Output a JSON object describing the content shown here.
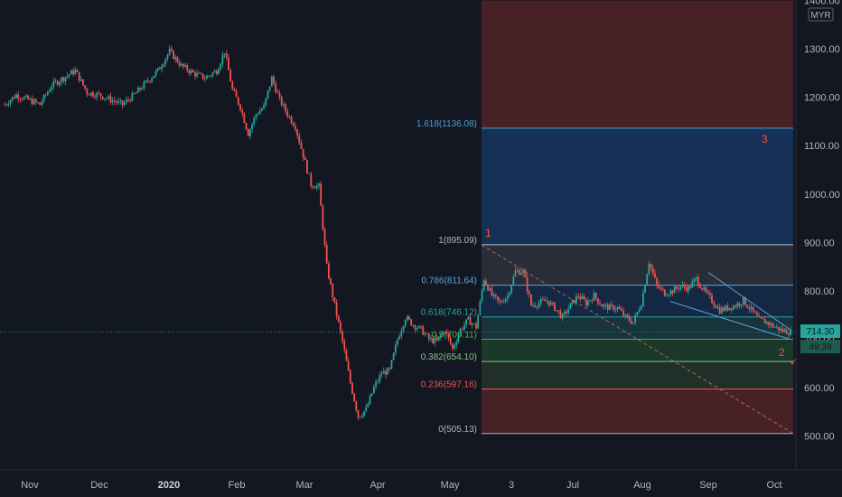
{
  "currency": "MYR",
  "price_badge": "714.30",
  "countdown_badge": "49:39",
  "colors": {
    "background": "#131722",
    "up": "#26a69a",
    "down": "#ef5350",
    "axis_text": "#b2b5be",
    "price_line": "#26a69a",
    "zone_red": "#4a2227",
    "zone_blue": "#15345a",
    "zone_gray": "#2a2e39",
    "zone_green": "#1b3a2a",
    "trendline": "#5ea3d8",
    "dashed": "#b46060"
  },
  "chart_data": {
    "type": "candlestick",
    "title": "",
    "xlabel": "",
    "ylabel": "",
    "ylim": [
      440,
      1400
    ],
    "y_ticks": [
      {
        "value": 500,
        "label": "500.00"
      },
      {
        "value": 600,
        "label": "600.00"
      },
      {
        "value": 700,
        "label": "700.00"
      },
      {
        "value": 800,
        "label": "800.00"
      },
      {
        "value": 900,
        "label": "900.00"
      },
      {
        "value": 1000,
        "label": "1000.00"
      },
      {
        "value": 1100,
        "label": "1100.00"
      },
      {
        "value": 1200,
        "label": "1200.00"
      },
      {
        "value": 1300,
        "label": "1300.00"
      },
      {
        "value": 1400,
        "label": "1400.00"
      }
    ],
    "x_ticks": [
      {
        "label": "Nov",
        "bold": false
      },
      {
        "label": "Dec",
        "bold": false
      },
      {
        "label": "2020",
        "bold": true
      },
      {
        "label": "Feb",
        "bold": false
      },
      {
        "label": "Mar",
        "bold": false
      },
      {
        "label": "Apr",
        "bold": false
      },
      {
        "label": "May",
        "bold": false
      },
      {
        "label": "3",
        "bold": false
      },
      {
        "label": "Jul",
        "bold": false
      },
      {
        "label": "Aug",
        "bold": false
      },
      {
        "label": "Sep",
        "bold": false
      },
      {
        "label": "Oct",
        "bold": false
      }
    ],
    "price_path": [
      {
        "t": 0,
        "v": 1185
      },
      {
        "t": 3,
        "v": 1205
      },
      {
        "t": 6,
        "v": 1195
      },
      {
        "t": 9,
        "v": 1185
      },
      {
        "t": 12,
        "v": 1225
      },
      {
        "t": 15,
        "v": 1240
      },
      {
        "t": 18,
        "v": 1255
      },
      {
        "t": 21,
        "v": 1210
      },
      {
        "t": 24,
        "v": 1205
      },
      {
        "t": 27,
        "v": 1195
      },
      {
        "t": 30,
        "v": 1185
      },
      {
        "t": 33,
        "v": 1205
      },
      {
        "t": 36,
        "v": 1230
      },
      {
        "t": 39,
        "v": 1255
      },
      {
        "t": 42,
        "v": 1295
      },
      {
        "t": 45,
        "v": 1265
      },
      {
        "t": 48,
        "v": 1250
      },
      {
        "t": 51,
        "v": 1240
      },
      {
        "t": 54,
        "v": 1255
      },
      {
        "t": 56,
        "v": 1295
      },
      {
        "t": 58,
        "v": 1215
      },
      {
        "t": 60,
        "v": 1180
      },
      {
        "t": 62,
        "v": 1125
      },
      {
        "t": 64,
        "v": 1165
      },
      {
        "t": 66,
        "v": 1180
      },
      {
        "t": 68,
        "v": 1240
      },
      {
        "t": 70,
        "v": 1195
      },
      {
        "t": 72,
        "v": 1165
      },
      {
        "t": 74,
        "v": 1140
      },
      {
        "t": 76,
        "v": 1080
      },
      {
        "t": 78,
        "v": 1020
      },
      {
        "t": 80,
        "v": 1015
      },
      {
        "t": 82,
        "v": 850
      },
      {
        "t": 84,
        "v": 770
      },
      {
        "t": 86,
        "v": 695
      },
      {
        "t": 88,
        "v": 610
      },
      {
        "t": 90,
        "v": 540
      },
      {
        "t": 92,
        "v": 555
      },
      {
        "t": 94,
        "v": 600
      },
      {
        "t": 96,
        "v": 630
      },
      {
        "t": 98,
        "v": 635
      },
      {
        "t": 100,
        "v": 700
      },
      {
        "t": 102,
        "v": 745
      },
      {
        "t": 104,
        "v": 730
      },
      {
        "t": 106,
        "v": 720
      },
      {
        "t": 108,
        "v": 700
      },
      {
        "t": 110,
        "v": 695
      },
      {
        "t": 112,
        "v": 720
      },
      {
        "t": 114,
        "v": 680
      },
      {
        "t": 116,
        "v": 720
      },
      {
        "t": 118,
        "v": 740
      },
      {
        "t": 120,
        "v": 725
      },
      {
        "t": 122,
        "v": 825
      },
      {
        "t": 124,
        "v": 790
      },
      {
        "t": 126,
        "v": 775
      },
      {
        "t": 128,
        "v": 790
      },
      {
        "t": 130,
        "v": 840
      },
      {
        "t": 132,
        "v": 840
      },
      {
        "t": 134,
        "v": 770
      },
      {
        "t": 136,
        "v": 775
      },
      {
        "t": 138,
        "v": 780
      },
      {
        "t": 140,
        "v": 765
      },
      {
        "t": 142,
        "v": 745
      },
      {
        "t": 144,
        "v": 770
      },
      {
        "t": 146,
        "v": 790
      },
      {
        "t": 148,
        "v": 775
      },
      {
        "t": 150,
        "v": 790
      },
      {
        "t": 152,
        "v": 770
      },
      {
        "t": 154,
        "v": 765
      },
      {
        "t": 156,
        "v": 765
      },
      {
        "t": 158,
        "v": 745
      },
      {
        "t": 160,
        "v": 735
      },
      {
        "t": 162,
        "v": 775
      },
      {
        "t": 164,
        "v": 860
      },
      {
        "t": 166,
        "v": 810
      },
      {
        "t": 168,
        "v": 795
      },
      {
        "t": 170,
        "v": 800
      },
      {
        "t": 172,
        "v": 810
      },
      {
        "t": 174,
        "v": 805
      },
      {
        "t": 176,
        "v": 825
      },
      {
        "t": 178,
        "v": 800
      },
      {
        "t": 180,
        "v": 780
      },
      {
        "t": 182,
        "v": 760
      },
      {
        "t": 184,
        "v": 765
      },
      {
        "t": 186,
        "v": 770
      },
      {
        "t": 188,
        "v": 780
      },
      {
        "t": 190,
        "v": 760
      },
      {
        "t": 192,
        "v": 740
      },
      {
        "t": 194,
        "v": 735
      },
      {
        "t": 196,
        "v": 725
      },
      {
        "t": 198,
        "v": 718
      },
      {
        "t": 200,
        "v": 714
      }
    ],
    "price_line_value": 714.3,
    "fib_levels": [
      {
        "ratio": "1.618",
        "price": 1136.08,
        "label": "1.618(1136.08)",
        "color": "#4a9fd8"
      },
      {
        "ratio": "1",
        "price": 895.09,
        "label": "1(895.09)",
        "color": "#b2b5be"
      },
      {
        "ratio": "0.786",
        "price": 811.64,
        "label": "0.786(811.64)",
        "color": "#5ea3d8"
      },
      {
        "ratio": "0.618",
        "price": 746.12,
        "label": "0.618(746.12)",
        "color": "#26a69a"
      },
      {
        "ratio": "0.5",
        "price": 700.11,
        "label": "0.5(700.11)",
        "color": "#4caf50"
      },
      {
        "ratio": "0.382",
        "price": 654.1,
        "label": "0.382(654.10)",
        "color": "#81c784"
      },
      {
        "ratio": "0.236",
        "price": 597.16,
        "label": "0.236(597.16)",
        "color": "#ef5350"
      },
      {
        "ratio": "0",
        "price": 505.13,
        "label": "0(505.13)",
        "color": "#b2b5be"
      }
    ],
    "wave_labels": [
      {
        "text": "1",
        "color": "#ef5350"
      },
      {
        "text": "2",
        "color": "#ef5350"
      },
      {
        "text": "3",
        "color": "#ef5350"
      }
    ]
  }
}
